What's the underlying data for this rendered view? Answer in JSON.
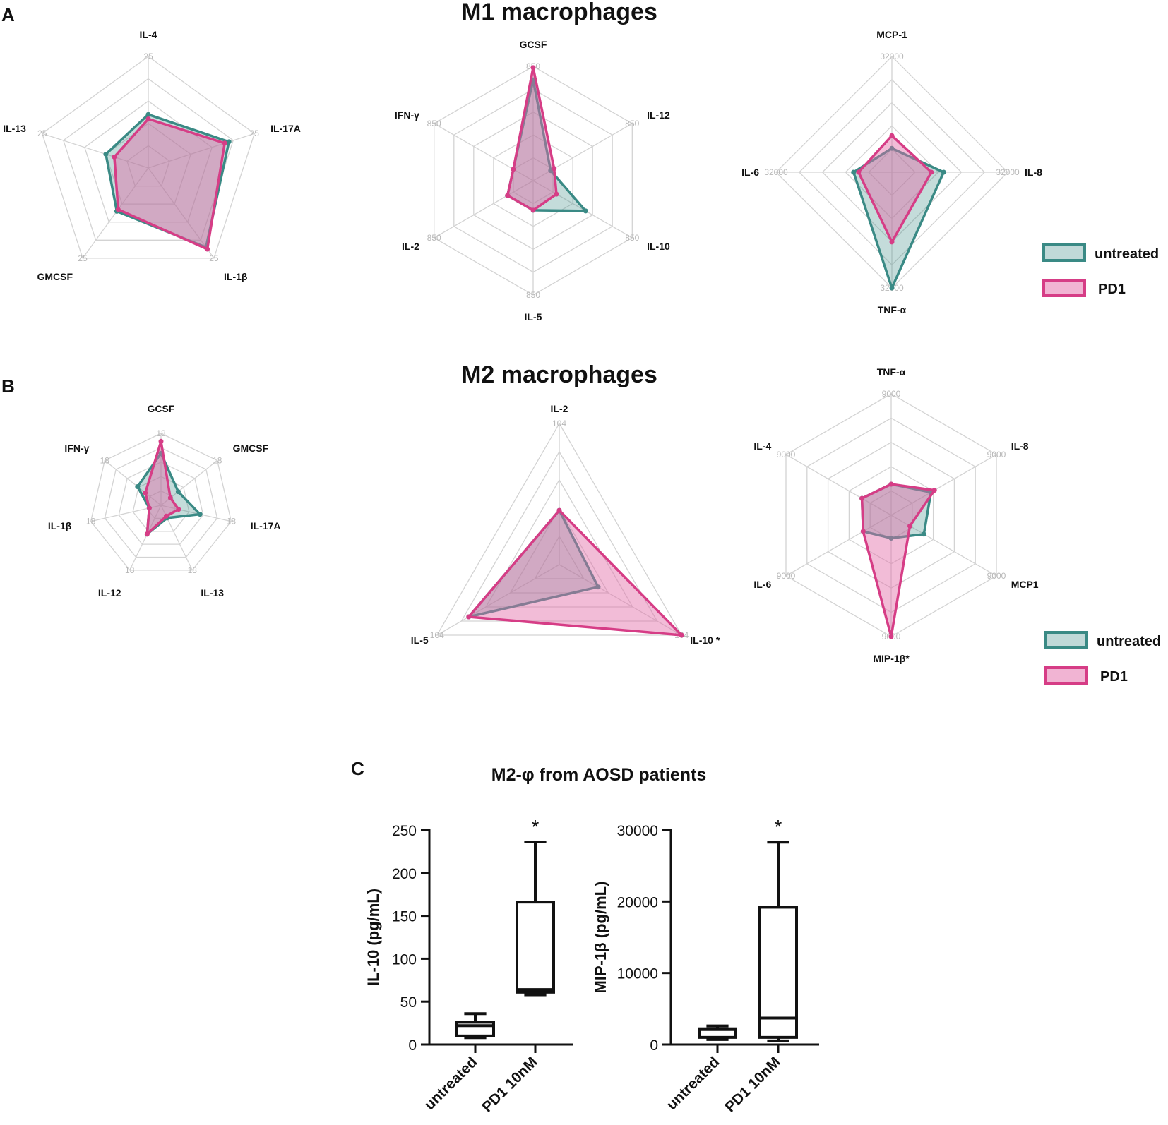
{
  "labels": {
    "panel_a": "A",
    "panel_b": "B",
    "panel_c": "C",
    "m1_title": "M1 macrophages",
    "m2_title": "M2 macrophages",
    "c_title": "M2-φ from AOSD patients"
  },
  "colors": {
    "untreated": "#3a8a85",
    "untreated_fill": "#3a8a85",
    "pd1": "#d63d86",
    "pd1_fill": "#e36aa7",
    "grid": "#d3d3d3"
  },
  "legend": {
    "untreated": "untreated",
    "pd1": "PD1"
  },
  "chart_data": [
    {
      "id": "m1_a",
      "type": "radar",
      "row": "M1 macrophages",
      "axes": [
        "IL-4",
        "IL-17A",
        "IL-1β",
        "GMCSF",
        "IL-13"
      ],
      "tick_label": "25",
      "rmax": 25,
      "series": [
        {
          "name": "untreated",
          "values": [
            12,
            19,
            22,
            12,
            10
          ]
        },
        {
          "name": "PD1",
          "values": [
            11,
            18,
            22.5,
            11.5,
            8
          ]
        }
      ]
    },
    {
      "id": "m1_b",
      "type": "radar",
      "row": "M1 macrophages",
      "axes": [
        "GCSF",
        "IL-12",
        "IL-10",
        "IL-5",
        "IL-2",
        "IFN-γ"
      ],
      "tick_label": "850",
      "rmax": 850,
      "series": [
        {
          "name": "untreated",
          "values": [
            750,
            150,
            450,
            220,
            220,
            170
          ]
        },
        {
          "name": "PD1",
          "values": [
            840,
            180,
            200,
            220,
            220,
            170
          ]
        }
      ]
    },
    {
      "id": "m1_c",
      "type": "radar",
      "row": "M1 macrophages",
      "axes": [
        "MCP-1",
        "IL-8",
        "TNF-α",
        "IL-6"
      ],
      "tick_label": "32000",
      "rmax": 32000,
      "series": [
        {
          "name": "untreated",
          "values": [
            6600,
            14300,
            32000,
            10600
          ]
        },
        {
          "name": "PD1",
          "values": [
            10100,
            10900,
            19300,
            9200
          ]
        }
      ]
    },
    {
      "id": "m2_a",
      "type": "radar",
      "row": "M2 macrophages",
      "axes": [
        "GCSF",
        "GMCSF",
        "IL-17A",
        "IL-13",
        "IL-12",
        "IL-1β",
        "IFN-γ"
      ],
      "tick_label": "18",
      "rmax": 18,
      "series": [
        {
          "name": "untreated",
          "values": [
            13,
            5.5,
            10,
            3.5,
            8,
            3,
            7.5
          ]
        },
        {
          "name": "PD1",
          "values": [
            16,
            3,
            4.5,
            3,
            8,
            3,
            5
          ]
        }
      ]
    },
    {
      "id": "m2_b",
      "type": "radar",
      "row": "M2 macrophages",
      "axes": [
        "IL-2",
        "IL-10 *",
        "IL-5"
      ],
      "tick_label": "104",
      "rmax": 104,
      "series": [
        {
          "name": "untreated",
          "values": [
            40,
            33,
            77
          ]
        },
        {
          "name": "PD1",
          "values": [
            40,
            104,
            77
          ]
        }
      ]
    },
    {
      "id": "m2_c",
      "type": "radar",
      "row": "M2 macrophages",
      "axes": [
        "TNF-α",
        "IL-8",
        "MCP1",
        "MIP-1β*",
        "IL-6",
        "IL-4"
      ],
      "tick_label": "9000",
      "rmax": 9000,
      "series": [
        {
          "name": "untreated",
          "values": [
            2300,
            3400,
            2800,
            1700,
            2400,
            2500
          ]
        },
        {
          "name": "PD1",
          "values": [
            2300,
            3700,
            1600,
            9000,
            2400,
            2500
          ]
        }
      ]
    },
    {
      "id": "c_il10",
      "type": "box",
      "ylabel": "IL-10 (pg/mL)",
      "ylim": [
        0,
        250
      ],
      "yticks": [
        0,
        50,
        100,
        150,
        200,
        250
      ],
      "categories": [
        "untreated",
        "PD1 10nM"
      ],
      "boxes": [
        {
          "min": 8,
          "q1": 10,
          "median": 22,
          "q3": 26,
          "max": 36
        },
        {
          "min": 58,
          "q1": 61,
          "median": 64,
          "q3": 166,
          "max": 236
        }
      ],
      "significance": [
        "",
        "*"
      ]
    },
    {
      "id": "c_mip1b",
      "type": "box",
      "ylabel": "MIP-1β (pg/mL)",
      "ylim": [
        0,
        30000
      ],
      "yticks": [
        0,
        10000,
        20000,
        30000
      ],
      "categories": [
        "untreated",
        "PD1 10nM"
      ],
      "boxes": [
        {
          "min": 700,
          "q1": 1000,
          "median": 2100,
          "q3": 2200,
          "max": 2600
        },
        {
          "min": 500,
          "q1": 1000,
          "median": 3700,
          "q3": 19200,
          "max": 28300
        }
      ],
      "significance": [
        "",
        "*"
      ]
    }
  ]
}
